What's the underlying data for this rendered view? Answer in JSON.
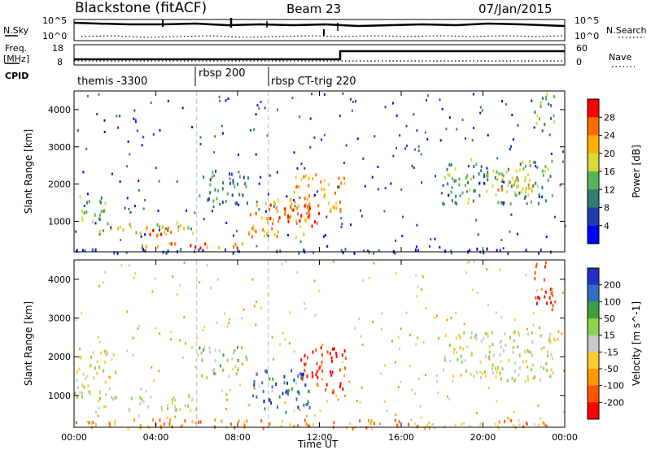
{
  "header": {
    "station": "Blackstone (fitACF)",
    "beam": "Beam 23",
    "date": "07/Jan/2015"
  },
  "top_panels": {
    "nsky_label": "N.Sky",
    "nsky_top_tick": "10^5",
    "nsky_bottom_tick": "10^0",
    "nsearch_label": "N.Search",
    "nsearch_top_tick": "10^5",
    "nsearch_bottom_tick": "10^0",
    "freq_label": "Freq.",
    "freq_unit": "[MHz]",
    "freq_ticks": [
      "18",
      "8"
    ],
    "nave_label": "Nave",
    "nave_ticks": [
      "60",
      "0"
    ],
    "cpid_label": "CPID",
    "cpid_segments": [
      {
        "name": "themis -3300",
        "start_hour": 0
      },
      {
        "name": "rbsp 200",
        "start_hour": 6.0
      },
      {
        "name": "rbsp CT-trig 220",
        "start_hour": 9.5
      }
    ]
  },
  "chart_data": [
    {
      "type": "heatmap",
      "title": "Power",
      "ylabel": "Slant Range [km]",
      "xlabel": "Time UT",
      "x_range_hours": [
        0,
        24
      ],
      "ylim": [
        180,
        4500
      ],
      "yticks": [
        "1000",
        "2000",
        "3000",
        "4000"
      ],
      "xticks": [
        "00:00",
        "04:00",
        "08:00",
        "12:00",
        "16:00",
        "20:00",
        "00:00"
      ],
      "colorbar": {
        "label": "Power [dB]",
        "ticks": [
          "4",
          "8",
          "12",
          "16",
          "20",
          "24",
          "28"
        ],
        "colors": [
          "#0000ff",
          "#1f3faf",
          "#2e7d6e",
          "#55b555",
          "#d9d93a",
          "#ffb000",
          "#ff6a00",
          "#ff0000"
        ]
      },
      "features": [
        {
          "t0": 0.0,
          "t1": 1.5,
          "r0": 950,
          "r1": 1800,
          "level": 3
        },
        {
          "t0": 1.2,
          "t1": 6.0,
          "r0": 650,
          "r1": 1000,
          "level": 4
        },
        {
          "t0": 3.5,
          "t1": 5.0,
          "r0": 650,
          "r1": 950,
          "level": 6
        },
        {
          "t0": 6.0,
          "t1": 8.5,
          "r0": 1500,
          "r1": 2400,
          "level": 2
        },
        {
          "t0": 8.5,
          "t1": 11.5,
          "r0": 600,
          "r1": 1700,
          "level": 5
        },
        {
          "t0": 9.5,
          "t1": 12.0,
          "r0": 900,
          "r1": 1500,
          "level": 7
        },
        {
          "t0": 10.5,
          "t1": 13.2,
          "r0": 1300,
          "r1": 2300,
          "level": 5
        },
        {
          "t0": 18.0,
          "t1": 23.5,
          "r0": 1500,
          "r1": 2700,
          "level": 3
        },
        {
          "t0": 20.5,
          "t1": 22.5,
          "r0": 1700,
          "r1": 2200,
          "level": 5
        },
        {
          "t0": 22.5,
          "t1": 23.5,
          "r0": 3400,
          "r1": 4500,
          "level": 3
        },
        {
          "t0": 3.0,
          "t1": 9.0,
          "r0": 280,
          "r1": 450,
          "level": 6
        },
        {
          "t0": 0.0,
          "t1": 24.0,
          "r0": 180,
          "r1": 300,
          "level": 1
        }
      ]
    },
    {
      "type": "heatmap",
      "title": "Velocity",
      "ylabel": "Slant Range [km]",
      "xlabel": "Time UT",
      "x_range_hours": [
        0,
        24
      ],
      "ylim": [
        180,
        4500
      ],
      "yticks": [
        "1000",
        "2000",
        "3000",
        "4000"
      ],
      "xticks": [
        "00:00",
        "04:00",
        "08:00",
        "12:00",
        "16:00",
        "20:00",
        "00:00"
      ],
      "colorbar": {
        "label": "Velocity [m s^-1]",
        "ticks": [
          "200",
          "100",
          "50",
          "15",
          "-15",
          "-50",
          "-100",
          "-200"
        ],
        "colors": [
          "#2030c0",
          "#2f6fbf",
          "#3ca03c",
          "#8bd34a",
          "#c8c8c8",
          "#ffcc33",
          "#ff9900",
          "#ff5500",
          "#ff0000"
        ]
      },
      "features": [
        {
          "t0": 0.0,
          "t1": 2.0,
          "r0": 1000,
          "r1": 2200,
          "level": 4
        },
        {
          "t0": 1.0,
          "t1": 6.0,
          "r0": 650,
          "r1": 1000,
          "level": 4
        },
        {
          "t0": 6.0,
          "t1": 8.5,
          "r0": 1500,
          "r1": 2300,
          "level": 3
        },
        {
          "t0": 8.5,
          "t1": 11.5,
          "r0": 600,
          "r1": 1700,
          "level": 1
        },
        {
          "t0": 11.0,
          "t1": 13.3,
          "r0": 1100,
          "r1": 2300,
          "level": 8
        },
        {
          "t0": 18.0,
          "t1": 23.5,
          "r0": 1400,
          "r1": 2700,
          "level": 4
        },
        {
          "t0": 22.5,
          "t1": 23.5,
          "r0": 3200,
          "r1": 4500,
          "level": 8
        },
        {
          "t0": 0.0,
          "t1": 24.0,
          "r0": 180,
          "r1": 420,
          "level": 6
        }
      ]
    }
  ]
}
